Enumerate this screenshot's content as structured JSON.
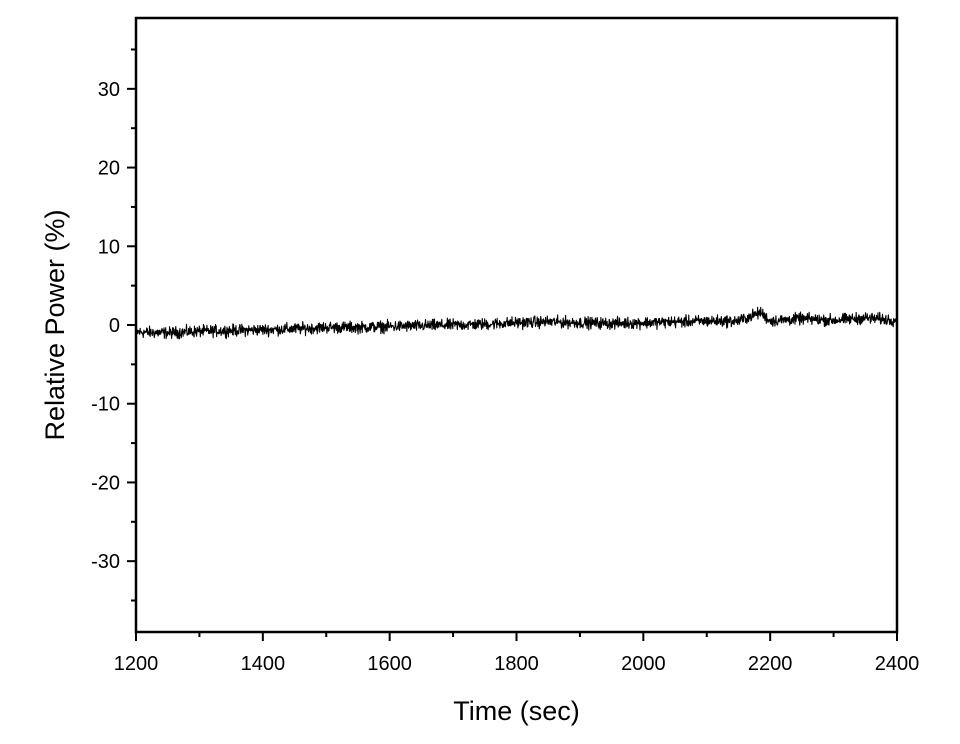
{
  "chart_data": {
    "type": "line",
    "title": "",
    "xlabel": "Time (sec)",
    "ylabel": "Relative Power (%)",
    "xlim": [
      1200,
      2400
    ],
    "ylim": [
      -39,
      39
    ],
    "x_ticks": [
      1200,
      1400,
      1600,
      1800,
      2000,
      2200,
      2400
    ],
    "y_ticks": [
      -30,
      -20,
      -10,
      0,
      10,
      20,
      30
    ],
    "x_minor_step": 100,
    "y_minor_step": 5,
    "grid": false,
    "legend": "none",
    "series": [
      {
        "color": "#000000",
        "points": [
          [
            1200,
            -0.9
          ],
          [
            1250,
            -1.0
          ],
          [
            1300,
            -0.8
          ],
          [
            1350,
            -0.7
          ],
          [
            1400,
            -0.6
          ],
          [
            1450,
            -0.5
          ],
          [
            1500,
            -0.3
          ],
          [
            1550,
            -0.3
          ],
          [
            1600,
            -0.2
          ],
          [
            1650,
            -0.1
          ],
          [
            1700,
            0.0
          ],
          [
            1750,
            0.1
          ],
          [
            1800,
            0.3
          ],
          [
            1850,
            0.4
          ],
          [
            1900,
            0.3
          ],
          [
            1950,
            0.2
          ],
          [
            2000,
            0.3
          ],
          [
            2050,
            0.4
          ],
          [
            2100,
            0.5
          ],
          [
            2150,
            0.5
          ],
          [
            2185,
            1.6
          ],
          [
            2200,
            0.5
          ],
          [
            2250,
            0.8
          ],
          [
            2300,
            0.6
          ],
          [
            2350,
            0.9
          ],
          [
            2400,
            0.6
          ]
        ],
        "noise_amplitude": 0.9
      }
    ]
  }
}
